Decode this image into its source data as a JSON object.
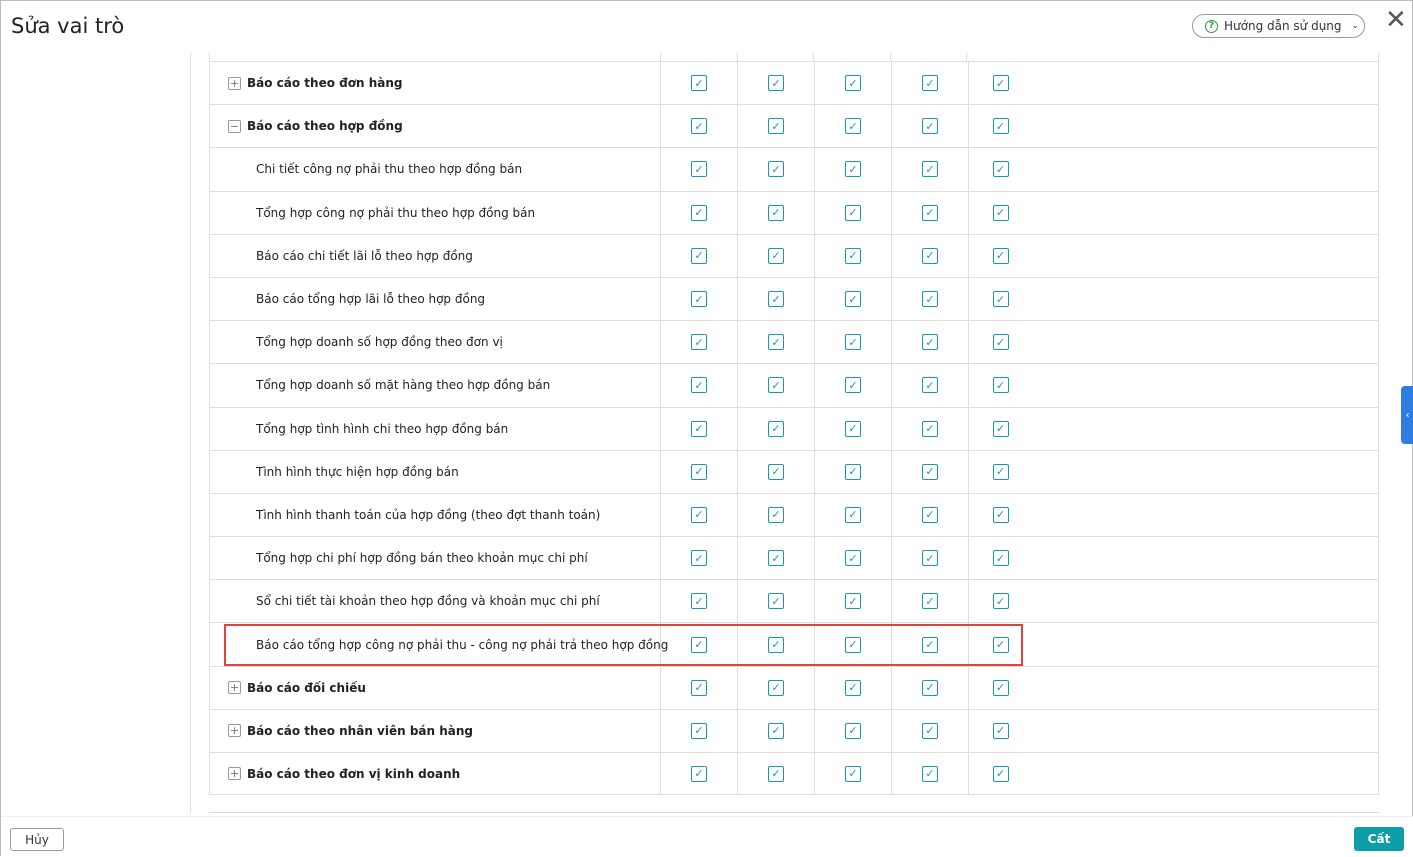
{
  "dialog": {
    "title": "Sửa vai trò",
    "help_label": "Hướng dẫn sử dụng",
    "close_icon": "close-icon"
  },
  "footer": {
    "cancel_label": "Hủy",
    "save_label": "Cất"
  },
  "colors": {
    "accent": "#0e9ea8",
    "checkbox": "#1a9aa8",
    "highlight": "#e0423f",
    "side_tab": "#2f7de1"
  },
  "rows": [
    {
      "label": "Báo cáo theo đơn hàng",
      "level": 0,
      "expander": "+",
      "checks": [
        true,
        true,
        true,
        true,
        true
      ]
    },
    {
      "label": "Báo cáo theo hợp đồng",
      "level": 0,
      "expander": "−",
      "checks": [
        true,
        true,
        true,
        true,
        true
      ]
    },
    {
      "label": "Chi tiết công nợ phải thu theo hợp đồng bán",
      "level": 1,
      "checks": [
        true,
        true,
        true,
        true,
        true
      ]
    },
    {
      "label": "Tổng hợp công nợ phải thu theo hợp đồng bán",
      "level": 1,
      "checks": [
        true,
        true,
        true,
        true,
        true
      ]
    },
    {
      "label": "Báo cáo chi tiết lãi lỗ theo hợp đồng",
      "level": 1,
      "checks": [
        true,
        true,
        true,
        true,
        true
      ]
    },
    {
      "label": "Báo cáo tổng hợp lãi lỗ theo hợp đồng",
      "level": 1,
      "checks": [
        true,
        true,
        true,
        true,
        true
      ]
    },
    {
      "label": "Tổng hợp doanh số hợp đồng theo đơn vị",
      "level": 1,
      "checks": [
        true,
        true,
        true,
        true,
        true
      ]
    },
    {
      "label": "Tổng hợp doanh số mặt hàng theo hợp đồng bán",
      "level": 1,
      "checks": [
        true,
        true,
        true,
        true,
        true
      ]
    },
    {
      "label": "Tổng hợp tình hình chi theo hợp đồng bán",
      "level": 1,
      "checks": [
        true,
        true,
        true,
        true,
        true
      ]
    },
    {
      "label": "Tình hình thực hiện hợp đồng bán",
      "level": 1,
      "checks": [
        true,
        true,
        true,
        true,
        true
      ]
    },
    {
      "label": "Tình hình thanh toán của hợp đồng (theo đợt thanh toán)",
      "level": 1,
      "checks": [
        true,
        true,
        true,
        true,
        true
      ]
    },
    {
      "label": "Tổng hợp chi phí hợp đồng bán theo khoản mục chi phí",
      "level": 1,
      "checks": [
        true,
        true,
        true,
        true,
        true
      ]
    },
    {
      "label": "Sổ chi tiết tài khoản theo hợp đồng và khoản mục chi phí",
      "level": 1,
      "checks": [
        true,
        true,
        true,
        true,
        true
      ]
    },
    {
      "label": "Báo cáo tổng hợp công nợ phải thu - công nợ phải trả theo hợp đồng",
      "level": 1,
      "highlighted": true,
      "checks": [
        true,
        true,
        true,
        true,
        true
      ]
    },
    {
      "label": "Báo cáo đối chiếu",
      "level": 0,
      "expander": "+",
      "checks": [
        true,
        true,
        true,
        true,
        true
      ]
    },
    {
      "label": "Báo cáo theo nhân viên bán hàng",
      "level": 0,
      "expander": "+",
      "checks": [
        true,
        true,
        true,
        true,
        true
      ]
    },
    {
      "label": "Báo cáo theo đơn vị kinh doanh",
      "level": 0,
      "expander": "+",
      "checks": [
        true,
        true,
        true,
        true,
        true
      ]
    }
  ]
}
